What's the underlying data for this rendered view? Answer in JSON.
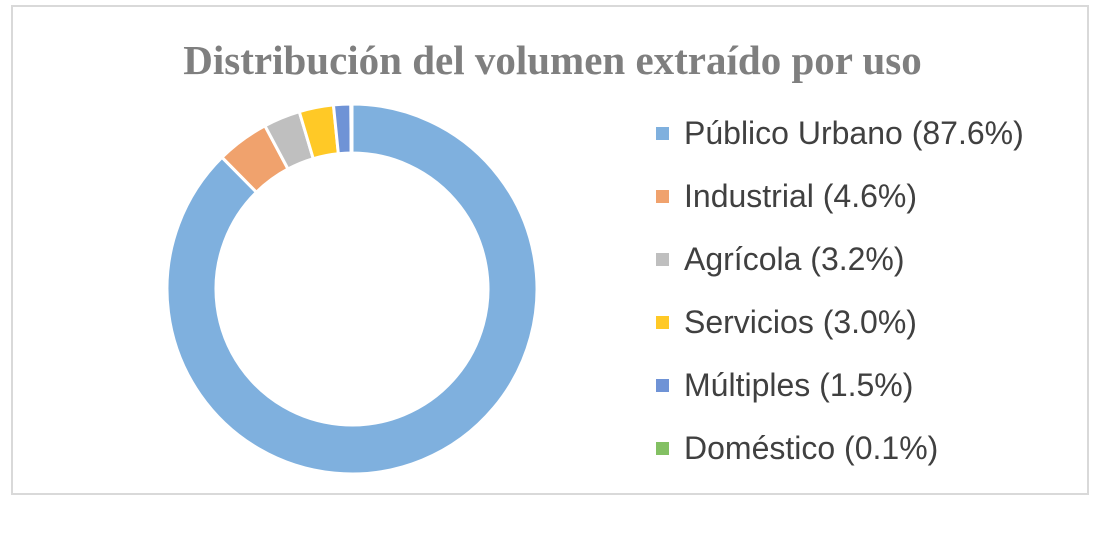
{
  "chart_data": {
    "type": "pie",
    "variant": "donut",
    "title": "Distribución del volumen extraído por uso",
    "legend_position": "right",
    "slices": [
      {
        "label": "Público Urbano (87.6%)",
        "value": 87.6,
        "color": "#7fb0de"
      },
      {
        "label": "Industrial (4.6%)",
        "value": 4.6,
        "color": "#f0a26d"
      },
      {
        "label": "Agrícola (3.2%)",
        "value": 3.2,
        "color": "#bfbfbf"
      },
      {
        "label": "Servicios (3.0%)",
        "value": 3.0,
        "color": "#ffc926"
      },
      {
        "label": "Múltiples (1.5%)",
        "value": 1.5,
        "color": "#6f93d6"
      },
      {
        "label": "Doméstico (0.1%)",
        "value": 0.1,
        "color": "#83c063"
      }
    ]
  }
}
